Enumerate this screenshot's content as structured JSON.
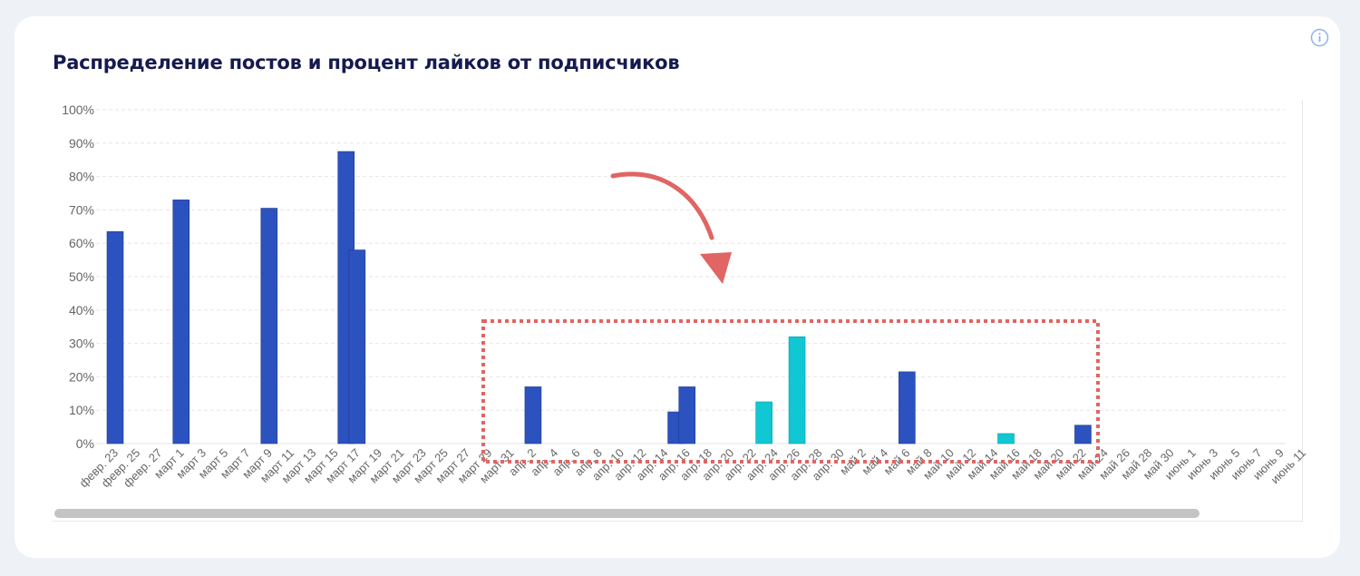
{
  "title": "Распределение постов и процент лайков от подписчиков",
  "info_icon": "info-icon",
  "colors": {
    "bar_primary": "#2c52bf",
    "bar_secondary": "#10c7d4",
    "grid": "#e6e6e6",
    "highlight": "#e06563",
    "axis_text": "#666666",
    "title": "#151a4f"
  },
  "annotations": {
    "highlight_box": "dotted red rectangle around апр. 1 – май 24",
    "arrow": "red curved arrow pointing into highlighted range"
  },
  "chart_data": {
    "type": "bar",
    "ylim": [
      0,
      100
    ],
    "ytick_labels": [
      "0%",
      "10%",
      "20%",
      "30%",
      "40%",
      "50%",
      "60%",
      "70%",
      "80%",
      "90%",
      "100%"
    ],
    "ytick_values": [
      0,
      10,
      20,
      30,
      40,
      50,
      60,
      70,
      80,
      90,
      100
    ],
    "grid": true,
    "legend": "none",
    "categories": [
      "февр. 23",
      "февр. 25",
      "февр. 27",
      "март 1",
      "март 3",
      "март 5",
      "март 7",
      "март 9",
      "март 11",
      "март 13",
      "март 15",
      "март 17",
      "март 19",
      "март 21",
      "март 23",
      "март 25",
      "март 27",
      "март 29",
      "март 31",
      "апр. 2",
      "апр. 4",
      "апр. 6",
      "апр. 8",
      "апр. 10",
      "апр. 12",
      "апр. 14",
      "апр. 16",
      "апр. 18",
      "апр. 20",
      "апр. 22",
      "апр. 24",
      "апр. 26",
      "апр. 28",
      "апр. 30",
      "май 2",
      "май 4",
      "май 6",
      "май 8",
      "май 10",
      "май 12",
      "май 14",
      "май 16",
      "май 18",
      "май 20",
      "май 22",
      "май 24",
      "май 26",
      "май 28",
      "май 30",
      "июнь 1",
      "июнь 3",
      "июнь 5",
      "июнь 7",
      "июнь 9",
      "июнь 11"
    ],
    "bars": [
      {
        "x": 0.0,
        "value": 63.5,
        "series": "primary"
      },
      {
        "x": 3.0,
        "value": 73.0,
        "series": "primary"
      },
      {
        "x": 7.0,
        "value": 70.5,
        "series": "primary"
      },
      {
        "x": 10.5,
        "value": 87.5,
        "series": "primary"
      },
      {
        "x": 11.0,
        "value": 58.0,
        "series": "primary"
      },
      {
        "x": 19.0,
        "value": 17.0,
        "series": "primary"
      },
      {
        "x": 25.5,
        "value": 9.5,
        "series": "primary"
      },
      {
        "x": 26.0,
        "value": 17.0,
        "series": "primary"
      },
      {
        "x": 29.5,
        "value": 12.5,
        "series": "secondary"
      },
      {
        "x": 31.0,
        "value": 32.0,
        "series": "secondary"
      },
      {
        "x": 36.0,
        "value": 21.5,
        "series": "primary"
      },
      {
        "x": 40.5,
        "value": 3.0,
        "series": "secondary"
      },
      {
        "x": 44.0,
        "value": 5.5,
        "series": "primary"
      }
    ]
  }
}
